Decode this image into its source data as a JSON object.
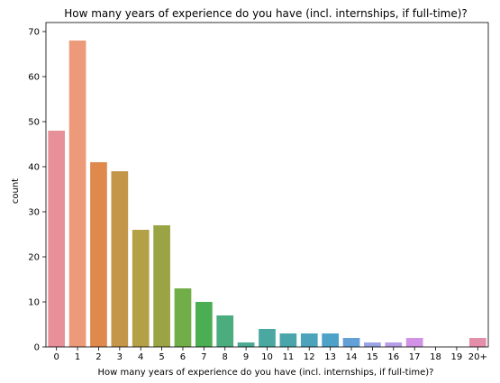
{
  "chart_data": {
    "type": "bar",
    "title": "How many years of experience do you have (incl. internships, if full-time)?",
    "xlabel": "How many years of experience do you have (incl. internships, if full-time)?",
    "ylabel": "count",
    "ylim": [
      0,
      72
    ],
    "yticks": [
      0,
      10,
      20,
      30,
      40,
      50,
      60,
      70
    ],
    "categories": [
      "0",
      "1",
      "2",
      "3",
      "4",
      "5",
      "6",
      "7",
      "8",
      "9",
      "10",
      "11",
      "12",
      "13",
      "14",
      "15",
      "16",
      "17",
      "18",
      "19",
      "20+"
    ],
    "values": [
      48,
      68,
      41,
      39,
      26,
      27,
      13,
      10,
      7,
      1,
      4,
      3,
      3,
      3,
      2,
      1,
      1,
      2,
      0,
      0,
      2
    ],
    "colors": [
      "#e8909a",
      "#ec9a7a",
      "#df8a4c",
      "#c4964a",
      "#b4a046",
      "#9ba444",
      "#71ae48",
      "#4cae52",
      "#4bac7e",
      "#4aaa94",
      "#4aa8a0",
      "#4ba6ac",
      "#4ca4ba",
      "#4ea2c8",
      "#63a0d8",
      "#9aa3e4",
      "#b89ce8",
      "#d292e6",
      "#e08ed2",
      "#e48eba",
      "#e48faa"
    ],
    "grid": false,
    "legend": "none"
  }
}
